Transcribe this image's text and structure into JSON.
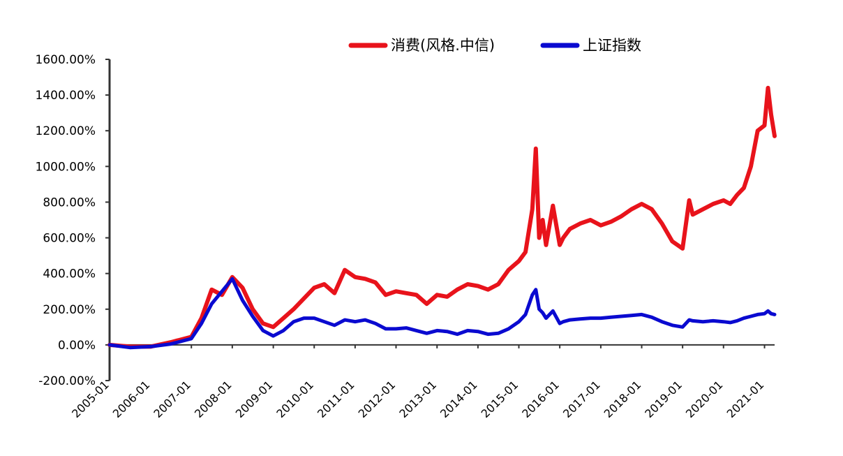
{
  "chart_data": {
    "type": "line",
    "legend_position": "top",
    "grid": false,
    "y_unit": "%",
    "ylim": [
      -200,
      1600
    ],
    "y_ticks": [
      -200,
      0,
      200,
      400,
      600,
      800,
      1000,
      1200,
      1400,
      1600
    ],
    "y_tick_labels": [
      "-200.00%",
      "0.00%",
      "200.00%",
      "400.00%",
      "600.00%",
      "800.00%",
      "1000.00%",
      "1200.00%",
      "1400.00%",
      "1600.00%"
    ],
    "x_tick_labels": [
      "2005-01",
      "2006-01",
      "2007-01",
      "2008-01",
      "2009-01",
      "2010-01",
      "2011-01",
      "2012-01",
      "2013-01",
      "2014-01",
      "2015-01",
      "2016-01",
      "2017-01",
      "2018-01",
      "2019-01",
      "2020-01",
      "2021-01"
    ],
    "series": [
      {
        "name": "消费(风格.中信)",
        "color": "#e8131b",
        "x": [
          "2005-01",
          "2005-07",
          "2006-01",
          "2006-07",
          "2007-01",
          "2007-04",
          "2007-07",
          "2007-10",
          "2008-01",
          "2008-04",
          "2008-07",
          "2008-10",
          "2009-01",
          "2009-04",
          "2009-07",
          "2009-10",
          "2010-01",
          "2010-04",
          "2010-07",
          "2010-10",
          "2011-01",
          "2011-04",
          "2011-07",
          "2011-10",
          "2012-01",
          "2012-04",
          "2012-07",
          "2012-10",
          "2013-01",
          "2013-04",
          "2013-07",
          "2013-10",
          "2014-01",
          "2014-04",
          "2014-07",
          "2014-10",
          "2015-01",
          "2015-03",
          "2015-05",
          "2015-06",
          "2015-07",
          "2015-08",
          "2015-09",
          "2015-11",
          "2016-01",
          "2016-02",
          "2016-04",
          "2016-07",
          "2016-10",
          "2017-01",
          "2017-04",
          "2017-07",
          "2017-10",
          "2018-01",
          "2018-04",
          "2018-07",
          "2018-10",
          "2019-01",
          "2019-03",
          "2019-04",
          "2019-07",
          "2019-10",
          "2020-01",
          "2020-03",
          "2020-05",
          "2020-07",
          "2020-09",
          "2020-11",
          "2021-01",
          "2021-02",
          "2021-03",
          "2021-04"
        ],
        "values": [
          0,
          -10,
          -10,
          15,
          45,
          150,
          310,
          280,
          380,
          320,
          200,
          120,
          100,
          150,
          200,
          260,
          320,
          340,
          290,
          420,
          380,
          370,
          350,
          280,
          300,
          290,
          280,
          230,
          280,
          270,
          310,
          340,
          330,
          310,
          340,
          420,
          470,
          520,
          760,
          1100,
          600,
          700,
          560,
          780,
          560,
          600,
          650,
          680,
          700,
          670,
          690,
          720,
          760,
          790,
          760,
          680,
          580,
          540,
          810,
          730,
          760,
          790,
          810,
          790,
          840,
          880,
          1000,
          1200,
          1230,
          1440,
          1290,
          1170
        ]
      },
      {
        "name": "上证指数",
        "color": "#0a0ad0",
        "x": [
          "2005-01",
          "2005-07",
          "2006-01",
          "2006-07",
          "2007-01",
          "2007-04",
          "2007-07",
          "2007-10",
          "2008-01",
          "2008-04",
          "2008-07",
          "2008-10",
          "2009-01",
          "2009-04",
          "2009-07",
          "2009-10",
          "2010-01",
          "2010-04",
          "2010-07",
          "2010-10",
          "2011-01",
          "2011-04",
          "2011-07",
          "2011-10",
          "2012-01",
          "2012-04",
          "2012-07",
          "2012-10",
          "2013-01",
          "2013-04",
          "2013-07",
          "2013-10",
          "2014-01",
          "2014-04",
          "2014-07",
          "2014-10",
          "2015-01",
          "2015-03",
          "2015-05",
          "2015-06",
          "2015-07",
          "2015-08",
          "2015-09",
          "2015-11",
          "2016-01",
          "2016-02",
          "2016-04",
          "2016-07",
          "2016-10",
          "2017-01",
          "2017-04",
          "2017-07",
          "2017-10",
          "2018-01",
          "2018-04",
          "2018-07",
          "2018-10",
          "2019-01",
          "2019-03",
          "2019-04",
          "2019-07",
          "2019-10",
          "2020-01",
          "2020-03",
          "2020-05",
          "2020-07",
          "2020-09",
          "2020-11",
          "2021-01",
          "2021-02",
          "2021-03",
          "2021-04"
        ],
        "values": [
          0,
          -15,
          -10,
          5,
          35,
          120,
          230,
          300,
          370,
          250,
          160,
          80,
          50,
          80,
          130,
          150,
          150,
          130,
          110,
          140,
          130,
          140,
          120,
          90,
          90,
          95,
          80,
          65,
          80,
          75,
          60,
          80,
          75,
          60,
          65,
          90,
          130,
          170,
          280,
          310,
          200,
          180,
          150,
          190,
          120,
          130,
          140,
          145,
          150,
          150,
          155,
          160,
          165,
          170,
          155,
          130,
          110,
          100,
          140,
          135,
          130,
          135,
          130,
          125,
          135,
          150,
          160,
          170,
          175,
          190,
          175,
          170
        ]
      }
    ]
  }
}
